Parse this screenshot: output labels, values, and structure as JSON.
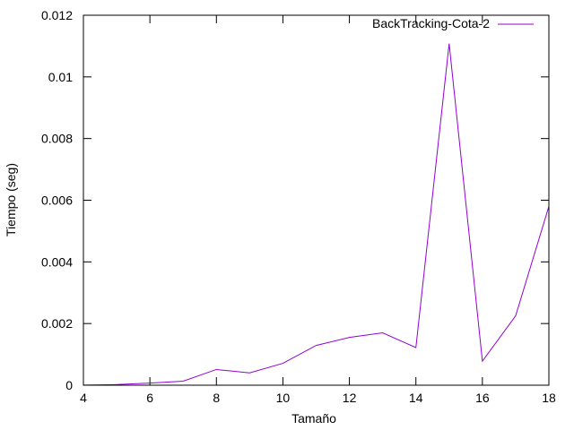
{
  "chart_data": {
    "type": "line",
    "title": "",
    "xlabel": "Tamaño",
    "ylabel": "Tiempo (seg)",
    "xlim": [
      4,
      18
    ],
    "ylim": [
      0,
      0.012
    ],
    "grid": false,
    "legend_position": "top-right",
    "x_ticks": [
      4,
      6,
      8,
      10,
      12,
      14,
      16,
      18
    ],
    "y_ticks": [
      "0",
      "0.002",
      "0.004",
      "0.006",
      "0.008",
      "0.01",
      "0.012"
    ],
    "series": [
      {
        "name": "BackTracking-Cota-2",
        "color": "#9400d3",
        "x": [
          4,
          5,
          6,
          7,
          8,
          9,
          10,
          11,
          12,
          13,
          14,
          15,
          16,
          17,
          18
        ],
        "y": [
          2e-06,
          2e-05,
          7e-05,
          0.00013,
          0.00051,
          0.0004,
          0.00071,
          0.00129,
          0.00155,
          0.0017,
          0.00122,
          0.01108,
          0.00078,
          0.00225,
          0.0058
        ]
      }
    ]
  }
}
